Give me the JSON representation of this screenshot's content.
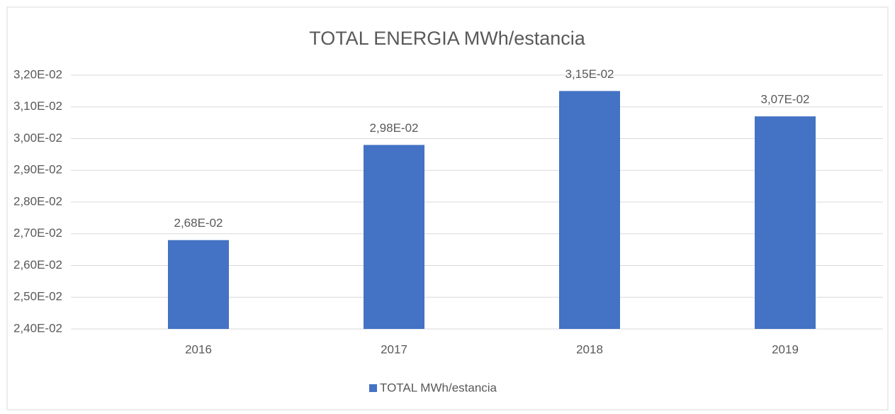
{
  "chart_data": {
    "type": "bar",
    "title": "TOTAL ENERGIA  MWh/estancia",
    "categories": [
      "2016",
      "2017",
      "2018",
      "2019"
    ],
    "series": [
      {
        "name": "TOTAL MWh/estancia",
        "color": "#4472c4",
        "values": [
          0.0268,
          0.0298,
          0.0315,
          0.0307
        ],
        "value_labels": [
          "2,68E-02",
          "2,98E-02",
          "3,15E-02",
          "3,07E-02"
        ]
      }
    ],
    "ylim": [
      0.024,
      0.032
    ],
    "yticks": [
      {
        "value": 0.024,
        "label": "2,40E-02"
      },
      {
        "value": 0.025,
        "label": "2,50E-02"
      },
      {
        "value": 0.026,
        "label": "2,60E-02"
      },
      {
        "value": 0.027,
        "label": "2,70E-02"
      },
      {
        "value": 0.028,
        "label": "2,80E-02"
      },
      {
        "value": 0.029,
        "label": "2,90E-02"
      },
      {
        "value": 0.03,
        "label": "3,00E-02"
      },
      {
        "value": 0.031,
        "label": "3,10E-02"
      },
      {
        "value": 0.032,
        "label": "3,20E-02"
      }
    ],
    "grid": true,
    "legend": "bottom"
  }
}
